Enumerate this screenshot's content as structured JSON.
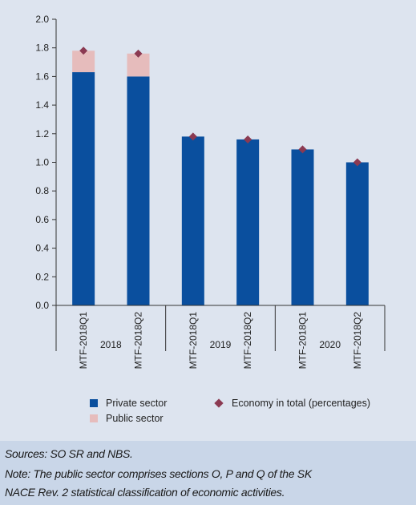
{
  "colors": {
    "private": "#0a4f9e",
    "public": "#e6bcbc",
    "total": "#8b3a52",
    "background": "#dde4ef",
    "notes_background": "#c9d6e8"
  },
  "chart_data": {
    "type": "bar",
    "stacked": true,
    "categories": [
      "MTF-2018Q1",
      "MTF-2018Q2",
      "MTF-2018Q1",
      "MTF-2018Q2",
      "MTF-2018Q1",
      "MTF-2018Q2"
    ],
    "groups": [
      {
        "label": "2018",
        "span": 2
      },
      {
        "label": "2019",
        "span": 2
      },
      {
        "label": "2020",
        "span": 2
      }
    ],
    "series": [
      {
        "name": "Private sector",
        "kind": "bar",
        "values": [
          1.63,
          1.6,
          1.18,
          1.16,
          1.09,
          1.0
        ]
      },
      {
        "name": "Public sector",
        "kind": "bar",
        "values": [
          0.15,
          0.16,
          0.0,
          0.0,
          0.0,
          0.0
        ]
      },
      {
        "name": "Economy in total (percentages)",
        "kind": "marker",
        "values": [
          1.78,
          1.76,
          1.18,
          1.16,
          1.09,
          1.0
        ]
      }
    ],
    "ylim": [
      0,
      2.0
    ],
    "yticks": [
      "0.0",
      "0.2",
      "0.4",
      "0.6",
      "0.8",
      "1.0",
      "1.2",
      "1.4",
      "1.6",
      "1.8",
      "2.0"
    ],
    "grid": false
  },
  "notes": {
    "line1": "Sources: SO SR and NBS.",
    "line2": "Note: The public sector comprises sections O, P and Q of the SK",
    "line3": "NACE Rev. 2 statistical classification of economic activities."
  }
}
